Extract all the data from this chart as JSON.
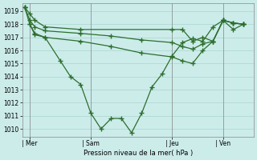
{
  "background_color": "#ccecea",
  "grid_color": "#aad4d0",
  "line_color": "#2d6e2d",
  "ylabel": "Pression niveau de la mer( hPa )",
  "ylim": [
    1009.4,
    1019.6
  ],
  "xtick_labels": [
    "| Mer",
    "| Sam",
    "| Jeu",
    "| Ven"
  ],
  "xtick_positions": [
    2,
    26,
    58,
    78
  ],
  "figsize": [
    3.2,
    2.0
  ],
  "dpi": 100,
  "s1_x": [
    0,
    2,
    4,
    8,
    22,
    58,
    62,
    66,
    70,
    74,
    78,
    82,
    86
  ],
  "s1_y": [
    1019.3,
    1018.8,
    1018.3,
    1017.8,
    1017.6,
    1017.6,
    1017.6,
    1016.7,
    1017.0,
    1016.7,
    1018.3,
    1018.1,
    1018.0
  ],
  "s2_x": [
    0,
    2,
    4,
    8,
    22,
    34,
    46,
    58,
    62,
    66,
    70,
    74,
    78,
    82,
    86
  ],
  "s2_y": [
    1019.3,
    1018.3,
    1017.8,
    1017.5,
    1017.3,
    1017.1,
    1016.8,
    1016.6,
    1016.3,
    1016.1,
    1016.5,
    1016.7,
    1018.3,
    1018.1,
    1018.0
  ],
  "s3_x": [
    0,
    2,
    4,
    8,
    22,
    34,
    46,
    58,
    62,
    66,
    70,
    74,
    78,
    82,
    86
  ],
  "s3_y": [
    1019.3,
    1018.0,
    1017.3,
    1017.0,
    1016.7,
    1016.3,
    1015.8,
    1015.5,
    1015.2,
    1015.0,
    1016.0,
    1016.7,
    1018.3,
    1018.1,
    1018.0
  ],
  "s4_x": [
    2,
    4,
    8,
    14,
    18,
    22,
    26,
    30,
    34,
    38,
    42,
    46,
    50,
    54,
    58,
    62,
    66,
    70,
    74,
    78,
    82,
    86
  ],
  "s4_y": [
    1018.0,
    1017.2,
    1017.0,
    1015.2,
    1014.0,
    1013.4,
    1011.2,
    1010.0,
    1010.8,
    1010.8,
    1009.7,
    1011.2,
    1013.2,
    1014.2,
    1015.6,
    1016.6,
    1016.9,
    1016.7,
    1017.8,
    1018.3,
    1017.6,
    1018.0
  ],
  "vline_x": [
    2,
    26,
    58,
    78
  ],
  "xlim": [
    -1,
    90
  ]
}
